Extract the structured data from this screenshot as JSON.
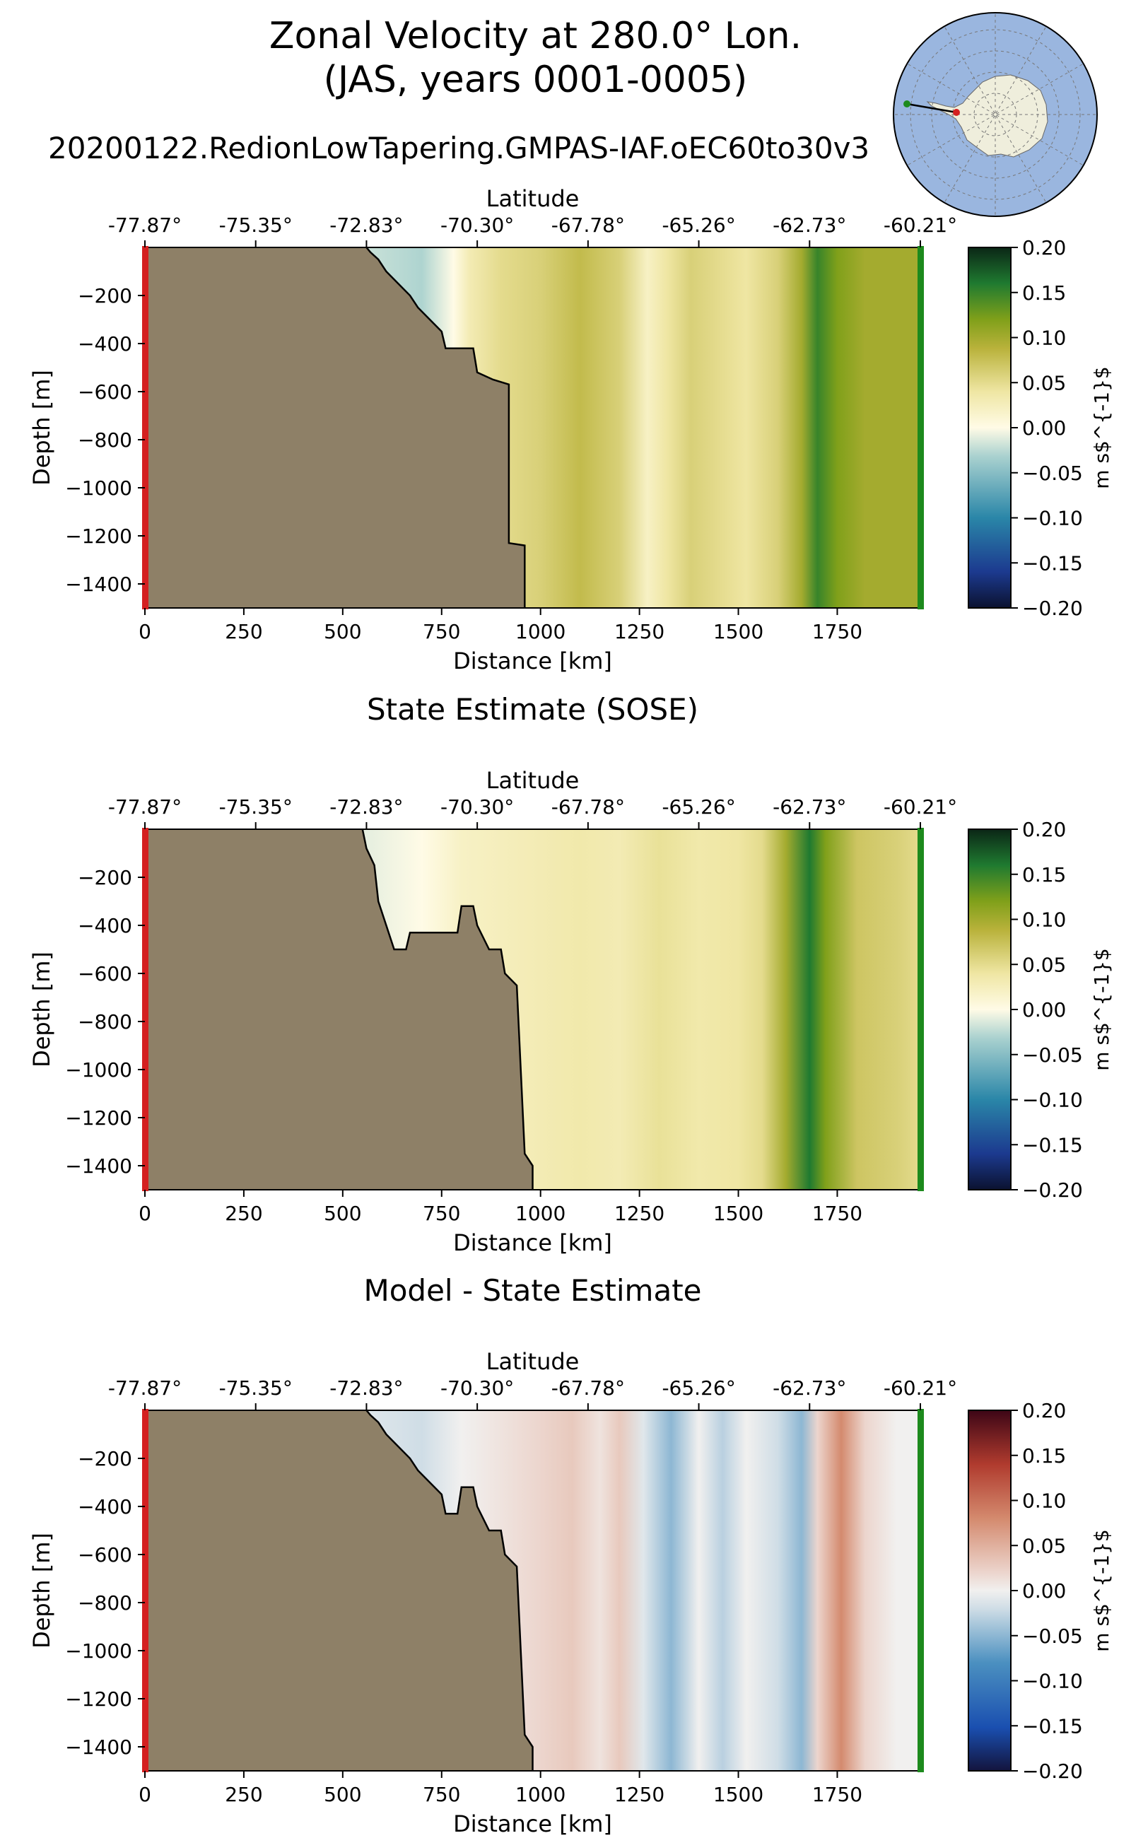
{
  "figure": {
    "title_line1": "Zonal Velocity at 280.0° Lon.",
    "title_line2": "(JAS, years 0001-0005)",
    "run_name": "20200122.RedionLowTapering.GMPAS-IAF.oEC60to30v3"
  },
  "colors": {
    "land": "#8e8067",
    "start_marker": "#d42020",
    "end_marker": "#1d8a1d",
    "ocean_disk": "#9ab6df",
    "continent": "#efeedc"
  },
  "colormaps": {
    "velocity": [
      [
        0,
        "#0b1230"
      ],
      [
        0.1,
        "#1c3a8f"
      ],
      [
        0.25,
        "#2a86a8"
      ],
      [
        0.42,
        "#a9d1cf"
      ],
      [
        0.5,
        "#fffbe6"
      ],
      [
        0.6,
        "#efe6a3"
      ],
      [
        0.72,
        "#b9b23b"
      ],
      [
        0.8,
        "#80a01a"
      ],
      [
        0.9,
        "#1f7a30"
      ],
      [
        1,
        "#0b2616"
      ]
    ],
    "difference": [
      [
        0,
        "#13143d"
      ],
      [
        0.12,
        "#1a4fb0"
      ],
      [
        0.3,
        "#4b90c0"
      ],
      [
        0.45,
        "#cfdde6"
      ],
      [
        0.5,
        "#f1f0ef"
      ],
      [
        0.55,
        "#ecd5cd"
      ],
      [
        0.7,
        "#d48a6e"
      ],
      [
        0.85,
        "#b03b2e"
      ],
      [
        1,
        "#3d0616"
      ]
    ]
  },
  "chart_data": [
    {
      "type": "heatmap",
      "title": "",
      "xlabel": "Distance [km]",
      "ylabel": "Depth [m]",
      "top_axis_label": "Latitude",
      "top_ticks": [
        "-77.87°",
        "-75.35°",
        "-72.83°",
        "-70.30°",
        "-67.78°",
        "-65.26°",
        "-62.73°",
        "-60.21°"
      ],
      "xticks": [
        0,
        250,
        500,
        750,
        1000,
        1250,
        1500,
        1750
      ],
      "yticks": [
        -200,
        -400,
        -600,
        -800,
        -1000,
        -1200,
        -1400
      ],
      "xlim": [
        0,
        1960
      ],
      "ylim": [
        -1500,
        0
      ],
      "colorbar": {
        "label": "m s$^{-1}$",
        "ticks": [
          "0.20",
          "0.15",
          "0.10",
          "0.05",
          "0.00",
          "−0.05",
          "−0.10",
          "−0.15",
          "−0.20"
        ],
        "range": [
          -0.2,
          0.2
        ],
        "cmap": "velocity"
      },
      "bottom_depth": [
        [
          0,
          0
        ],
        [
          560,
          0
        ],
        [
          570,
          -20
        ],
        [
          590,
          -50
        ],
        [
          610,
          -100
        ],
        [
          640,
          -150
        ],
        [
          670,
          -200
        ],
        [
          690,
          -250
        ],
        [
          720,
          -300
        ],
        [
          750,
          -350
        ],
        [
          760,
          -420
        ],
        [
          830,
          -420
        ],
        [
          840,
          -520
        ],
        [
          880,
          -550
        ],
        [
          920,
          -570
        ],
        [
          920,
          -1230
        ],
        [
          960,
          -1240
        ],
        [
          960,
          -1500
        ]
      ],
      "velocity_profile": [
        [
          560,
          -0.02
        ],
        [
          700,
          -0.03
        ],
        [
          780,
          0.0
        ],
        [
          820,
          0.03
        ],
        [
          900,
          0.05
        ],
        [
          1000,
          0.06
        ],
        [
          1100,
          0.08
        ],
        [
          1200,
          0.06
        ],
        [
          1270,
          0.02
        ],
        [
          1320,
          0.04
        ],
        [
          1380,
          0.06
        ],
        [
          1450,
          0.05
        ],
        [
          1520,
          0.04
        ],
        [
          1600,
          0.06
        ],
        [
          1660,
          0.1
        ],
        [
          1700,
          0.15
        ],
        [
          1750,
          0.12
        ],
        [
          1820,
          0.1
        ],
        [
          1960,
          0.1
        ]
      ]
    },
    {
      "type": "heatmap",
      "title": "State Estimate (SOSE)",
      "xlabel": "Distance [km]",
      "ylabel": "Depth [m]",
      "top_axis_label": "Latitude",
      "top_ticks": [
        "-77.87°",
        "-75.35°",
        "-72.83°",
        "-70.30°",
        "-67.78°",
        "-65.26°",
        "-62.73°",
        "-60.21°"
      ],
      "xticks": [
        0,
        250,
        500,
        750,
        1000,
        1250,
        1500,
        1750
      ],
      "yticks": [
        -200,
        -400,
        -600,
        -800,
        -1000,
        -1200,
        -1400
      ],
      "xlim": [
        0,
        1960
      ],
      "ylim": [
        -1500,
        0
      ],
      "colorbar": {
        "label": "m s$^{-1}$",
        "ticks": [
          "0.20",
          "0.15",
          "0.10",
          "0.05",
          "0.00",
          "−0.05",
          "−0.10",
          "−0.15",
          "−0.20"
        ],
        "range": [
          -0.2,
          0.2
        ],
        "cmap": "velocity"
      },
      "bottom_depth": [
        [
          0,
          0
        ],
        [
          550,
          0
        ],
        [
          560,
          -80
        ],
        [
          580,
          -150
        ],
        [
          590,
          -300
        ],
        [
          610,
          -400
        ],
        [
          630,
          -500
        ],
        [
          660,
          -500
        ],
        [
          670,
          -430
        ],
        [
          790,
          -430
        ],
        [
          800,
          -320
        ],
        [
          830,
          -320
        ],
        [
          840,
          -400
        ],
        [
          870,
          -500
        ],
        [
          900,
          -500
        ],
        [
          910,
          -600
        ],
        [
          940,
          -650
        ],
        [
          960,
          -1350
        ],
        [
          980,
          -1400
        ],
        [
          980,
          -1500
        ]
      ],
      "velocity_profile": [
        [
          550,
          -0.01
        ],
        [
          700,
          0.0
        ],
        [
          800,
          0.02
        ],
        [
          900,
          0.025
        ],
        [
          1000,
          0.03
        ],
        [
          1100,
          0.035
        ],
        [
          1200,
          0.03
        ],
        [
          1300,
          0.045
        ],
        [
          1400,
          0.035
        ],
        [
          1500,
          0.04
        ],
        [
          1560,
          0.05
        ],
        [
          1620,
          0.1
        ],
        [
          1680,
          0.16
        ],
        [
          1720,
          0.12
        ],
        [
          1800,
          0.07
        ],
        [
          1900,
          0.06
        ],
        [
          1960,
          0.05
        ]
      ]
    },
    {
      "type": "heatmap",
      "title": "Model - State Estimate",
      "xlabel": "Distance [km]",
      "ylabel": "Depth [m]",
      "top_axis_label": "Latitude",
      "top_ticks": [
        "-77.87°",
        "-75.35°",
        "-72.83°",
        "-70.30°",
        "-67.78°",
        "-65.26°",
        "-62.73°",
        "-60.21°"
      ],
      "xticks": [
        0,
        250,
        500,
        750,
        1000,
        1250,
        1500,
        1750
      ],
      "yticks": [
        -200,
        -400,
        -600,
        -800,
        -1000,
        -1200,
        -1400
      ],
      "xlim": [
        0,
        1960
      ],
      "ylim": [
        -1500,
        0
      ],
      "colorbar": {
        "label": "m s$^{-1}$",
        "ticks": [
          "0.20",
          "0.15",
          "0.10",
          "0.05",
          "0.00",
          "−0.05",
          "−0.10",
          "−0.15",
          "−0.20"
        ],
        "range": [
          -0.2,
          0.2
        ],
        "cmap": "difference"
      },
      "bottom_depth": [
        [
          0,
          0
        ],
        [
          560,
          0
        ],
        [
          570,
          -20
        ],
        [
          590,
          -50
        ],
        [
          610,
          -100
        ],
        [
          640,
          -150
        ],
        [
          670,
          -200
        ],
        [
          690,
          -250
        ],
        [
          720,
          -300
        ],
        [
          750,
          -350
        ],
        [
          760,
          -430
        ],
        [
          790,
          -430
        ],
        [
          800,
          -320
        ],
        [
          830,
          -320
        ],
        [
          840,
          -400
        ],
        [
          870,
          -500
        ],
        [
          900,
          -500
        ],
        [
          910,
          -600
        ],
        [
          940,
          -650
        ],
        [
          960,
          -1350
        ],
        [
          980,
          -1400
        ],
        [
          980,
          -1500
        ]
      ],
      "velocity_profile": [
        [
          560,
          -0.01
        ],
        [
          700,
          -0.02
        ],
        [
          800,
          0.0
        ],
        [
          900,
          0.01
        ],
        [
          1000,
          0.02
        ],
        [
          1080,
          0.03
        ],
        [
          1150,
          0.01
        ],
        [
          1200,
          0.03
        ],
        [
          1260,
          -0.01
        ],
        [
          1330,
          -0.05
        ],
        [
          1400,
          0.0
        ],
        [
          1460,
          -0.03
        ],
        [
          1520,
          0.0
        ],
        [
          1600,
          -0.02
        ],
        [
          1660,
          -0.05
        ],
        [
          1700,
          0.02
        ],
        [
          1760,
          0.08
        ],
        [
          1820,
          0.02
        ],
        [
          1900,
          0.0
        ],
        [
          1960,
          0.0
        ]
      ]
    }
  ]
}
